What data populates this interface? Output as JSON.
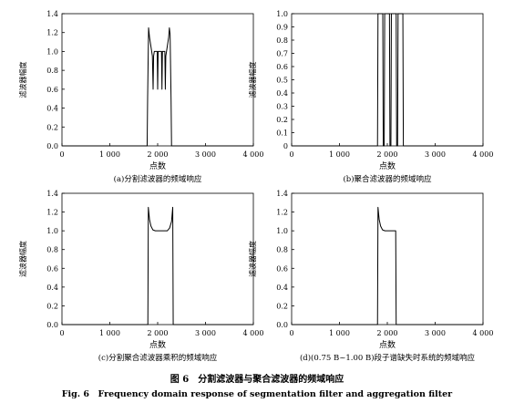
{
  "figure": {
    "title_cn": "图 6　分割滤波器与聚合滤波器的频域响应",
    "title_en": "Fig. 6　Frequency domain response of segmentation filter and aggregation filter"
  },
  "chart_data": [
    {
      "type": "line",
      "caption": "(a)分割滤波器的频域响应",
      "xlabel": "点数",
      "ylabel": "滤波器幅度",
      "xlim": [
        0,
        4000
      ],
      "ylim": [
        0,
        1.4
      ],
      "xticks": [
        0,
        1000,
        2000,
        3000,
        4000
      ],
      "xtick_labels": [
        "0",
        "1 000",
        "2 000",
        "3 000",
        "4 000"
      ],
      "yticks": [
        0,
        0.2,
        0.4,
        0.6,
        0.8,
        1.0,
        1.2,
        1.4
      ],
      "ytick_labels": [
        "0.0",
        "0.2",
        "0.4",
        "0.6",
        "0.8",
        "1.0",
        "1.2",
        "1.4"
      ],
      "grid": false,
      "series": [
        {
          "x": [
            0,
            1780,
            1790,
            1810,
            1830,
            1860,
            1890,
            1905,
            1915,
            1930,
            1990,
            2000,
            2010,
            2080,
            2090,
            2100,
            2150,
            2160,
            2170,
            2200,
            2230,
            2245,
            2260,
            2280,
            2290,
            4000
          ],
          "y": [
            0,
            0,
            0.5,
            1.25,
            1.15,
            1.05,
            0.95,
            0.6,
            0.95,
            1.0,
            1.0,
            0.6,
            1.0,
            1.0,
            0.6,
            1.0,
            1.0,
            0.6,
            0.95,
            1.05,
            1.15,
            1.25,
            1.18,
            0.5,
            0,
            0
          ]
        }
      ]
    },
    {
      "type": "line",
      "caption": "(b)聚合滤波器的频域响应",
      "xlabel": "点数",
      "ylabel": "滤波器幅度",
      "xlim": [
        0,
        4000
      ],
      "ylim": [
        0,
        1.0
      ],
      "xticks": [
        0,
        1000,
        2000,
        3000,
        4000
      ],
      "xtick_labels": [
        "0",
        "1 000",
        "2 000",
        "3 000",
        "4 000"
      ],
      "yticks": [
        0,
        0.1,
        0.2,
        0.3,
        0.4,
        0.5,
        0.6,
        0.7,
        0.8,
        0.9,
        1.0
      ],
      "ytick_labels": [
        "0",
        "0.1",
        "0.2",
        "0.3",
        "0.4",
        "0.5",
        "0.6",
        "0.7",
        "0.8",
        "0.9",
        "1.0"
      ],
      "grid": false,
      "series": [
        {
          "x": [
            0,
            1795,
            1805,
            1905,
            1915,
            1935,
            1945,
            2045,
            2055,
            2075,
            2085,
            2185,
            2195,
            2215,
            2225,
            2325,
            2335,
            4000
          ],
          "y": [
            0,
            0,
            1.0,
            1.0,
            0,
            0,
            1.0,
            1.0,
            0,
            0,
            1.0,
            1.0,
            0,
            0,
            1.0,
            1.0,
            0,
            0
          ]
        }
      ]
    },
    {
      "type": "line",
      "caption": "(c)分割聚合滤波器乘积的频域响应",
      "xlabel": "点数",
      "ylabel": "滤波器幅度",
      "xlim": [
        0,
        4000
      ],
      "ylim": [
        0,
        1.4
      ],
      "xticks": [
        0,
        1000,
        2000,
        3000,
        4000
      ],
      "xtick_labels": [
        "0",
        "1 000",
        "2 000",
        "3 000",
        "4 000"
      ],
      "yticks": [
        0,
        0.2,
        0.4,
        0.6,
        0.8,
        1.0,
        1.2,
        1.4
      ],
      "ytick_labels": [
        "0.0",
        "0.2",
        "0.4",
        "0.6",
        "0.8",
        "1.0",
        "1.2",
        "1.4"
      ],
      "grid": false,
      "series": [
        {
          "x": [
            0,
            1795,
            1805,
            1830,
            1860,
            1900,
            1950,
            2000,
            2150,
            2200,
            2250,
            2290,
            2315,
            2325,
            4000
          ],
          "y": [
            0,
            0,
            1.25,
            1.12,
            1.05,
            1.01,
            1.0,
            1.0,
            1.0,
            1.0,
            1.03,
            1.1,
            1.25,
            0,
            0
          ]
        }
      ]
    },
    {
      "type": "line",
      "caption": "(d)(0.75 B~1.00 B)段子谱缺失时系统的频域响应",
      "xlabel": "点数",
      "ylabel": "滤波器幅度",
      "xlim": [
        0,
        4000
      ],
      "ylim": [
        0,
        1.4
      ],
      "xticks": [
        0,
        1000,
        2000,
        3000,
        4000
      ],
      "xtick_labels": [
        "0",
        "1 000",
        "2 000",
        "3 000",
        "4 000"
      ],
      "yticks": [
        0,
        0.2,
        0.4,
        0.6,
        0.8,
        1.0,
        1.2,
        1.4
      ],
      "ytick_labels": [
        "0.0",
        "0.2",
        "0.4",
        "0.6",
        "0.8",
        "1.0",
        "1.2",
        "1.4"
      ],
      "grid": false,
      "series": [
        {
          "x": [
            0,
            1795,
            1805,
            1830,
            1860,
            1900,
            1950,
            2000,
            2150,
            2175,
            2185,
            4000
          ],
          "y": [
            0,
            0,
            1.25,
            1.12,
            1.05,
            1.01,
            1.0,
            1.0,
            1.0,
            1.0,
            0,
            0
          ]
        }
      ]
    }
  ]
}
